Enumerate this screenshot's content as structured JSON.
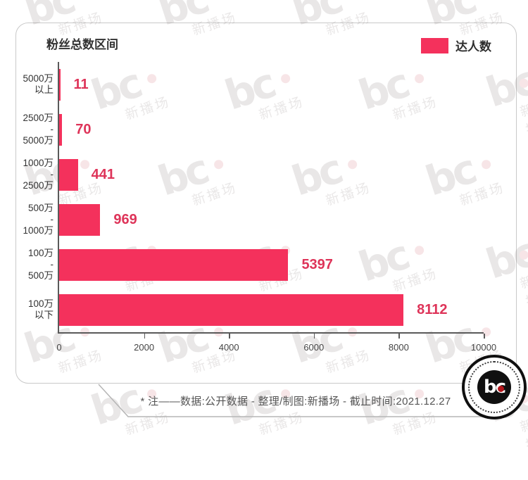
{
  "title": "粉丝总数区间",
  "legend": {
    "label": "达人数",
    "swatch_color": "#F4315C"
  },
  "chart_data": {
    "type": "bar",
    "orientation": "horizontal",
    "title": "粉丝总数区间",
    "series_name": "达人数",
    "categories": [
      [
        "5000万",
        "以上"
      ],
      [
        "2500万",
        "-",
        "5000万"
      ],
      [
        "1000万",
        "-",
        "2500万"
      ],
      [
        "500万",
        "-",
        "1000万"
      ],
      [
        "100万",
        "-",
        "500万"
      ],
      [
        "100万",
        "以下"
      ]
    ],
    "values": [
      11,
      70,
      441,
      969,
      5397,
      8112
    ],
    "x_ticks": [
      "0",
      "2000",
      "4000",
      "6000",
      "8000",
      "10000"
    ],
    "xlim": [
      0,
      10000
    ],
    "grid": false,
    "legend_position": "top-right",
    "bar_color": "#F4315C",
    "value_label_color": "#DE3459"
  },
  "footer": {
    "note": "* 注——数据:公开数据 - 整理/制图:新播场 - 截止时间:2021.12.27"
  },
  "logo": {
    "text": "bc"
  },
  "watermark": {
    "logo_text": "bc",
    "text": "新播场"
  }
}
